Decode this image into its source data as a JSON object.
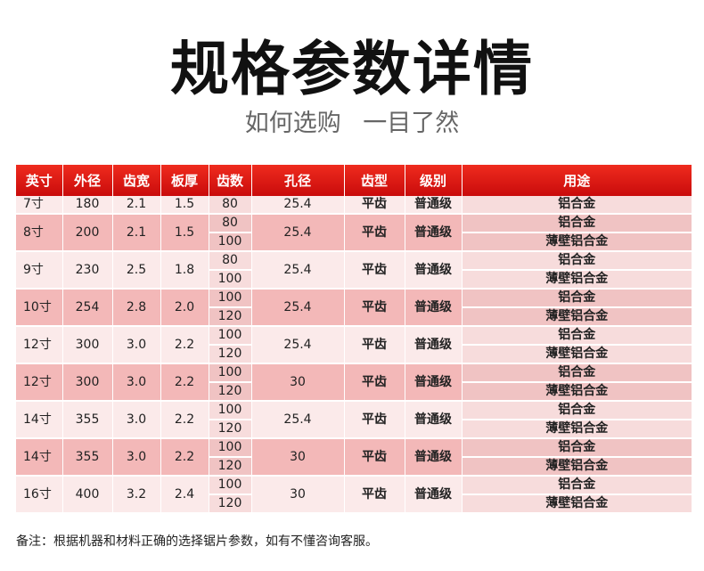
{
  "title": "规格参数详情",
  "subtitle": [
    "如何选购",
    "一目了然"
  ],
  "headers": [
    "英寸",
    "外径",
    "齿宽",
    "板厚",
    "齿数",
    "孔径",
    "齿型",
    "级别",
    "用途"
  ],
  "rows": [
    {
      "inch": "7寸",
      "od": "180",
      "kerf": "2.1",
      "plate": "1.5",
      "teeth": [
        "80"
      ],
      "bore": "25.4",
      "tooth_type": "平齿",
      "grade": "普通级",
      "uses": [
        "铝合金"
      ]
    },
    {
      "inch": "8寸",
      "od": "200",
      "kerf": "2.1",
      "plate": "1.5",
      "teeth": [
        "80",
        "100"
      ],
      "bore": "25.4",
      "tooth_type": "平齿",
      "grade": "普通级",
      "uses": [
        "铝合金",
        "薄壁铝合金"
      ]
    },
    {
      "inch": "9寸",
      "od": "230",
      "kerf": "2.5",
      "plate": "1.8",
      "teeth": [
        "80",
        "100"
      ],
      "bore": "25.4",
      "tooth_type": "平齿",
      "grade": "普通级",
      "uses": [
        "铝合金",
        "薄壁铝合金"
      ]
    },
    {
      "inch": "10寸",
      "od": "254",
      "kerf": "2.8",
      "plate": "2.0",
      "teeth": [
        "100",
        "120"
      ],
      "bore": "25.4",
      "tooth_type": "平齿",
      "grade": "普通级",
      "uses": [
        "铝合金",
        "薄壁铝合金"
      ]
    },
    {
      "inch": "12寸",
      "od": "300",
      "kerf": "3.0",
      "plate": "2.2",
      "teeth": [
        "100",
        "120"
      ],
      "bore": "25.4",
      "tooth_type": "平齿",
      "grade": "普通级",
      "uses": [
        "铝合金",
        "薄壁铝合金"
      ]
    },
    {
      "inch": "12寸",
      "od": "300",
      "kerf": "3.0",
      "plate": "2.2",
      "teeth": [
        "100",
        "120"
      ],
      "bore": "30",
      "tooth_type": "平齿",
      "grade": "普通级",
      "uses": [
        "铝合金",
        "薄壁铝合金"
      ]
    },
    {
      "inch": "14寸",
      "od": "355",
      "kerf": "3.0",
      "plate": "2.2",
      "teeth": [
        "100",
        "120"
      ],
      "bore": "25.4",
      "tooth_type": "平齿",
      "grade": "普通级",
      "uses": [
        "铝合金",
        "薄壁铝合金"
      ]
    },
    {
      "inch": "14寸",
      "od": "355",
      "kerf": "3.0",
      "plate": "2.2",
      "teeth": [
        "100",
        "120"
      ],
      "bore": "30",
      "tooth_type": "平齿",
      "grade": "普通级",
      "uses": [
        "铝合金",
        "薄壁铝合金"
      ]
    },
    {
      "inch": "16寸",
      "od": "400",
      "kerf": "3.2",
      "plate": "2.4",
      "teeth": [
        "100",
        "120"
      ],
      "bore": "30",
      "tooth_type": "平齿",
      "grade": "普通级",
      "uses": [
        "铝合金",
        "薄壁铝合金"
      ]
    }
  ],
  "note": "备注：根据机器和材料正确的选择锯片参数，如有不懂咨询客服。",
  "colors": {
    "header": "#e11d16",
    "row_light": "#fbeaea",
    "row_dark": "#f3b8b8"
  }
}
